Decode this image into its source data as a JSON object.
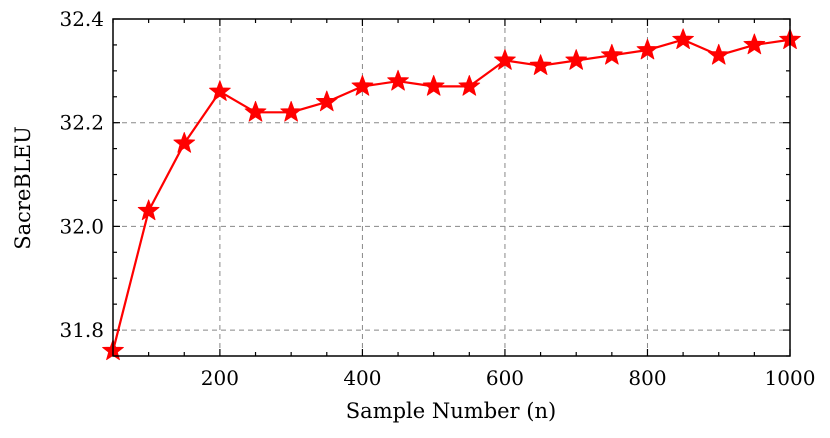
{
  "chart_data": {
    "type": "line",
    "title": "",
    "xlabel": "Sample Number (n)",
    "ylabel": "SacreBLEU",
    "xlim": [
      50,
      1000
    ],
    "ylim": [
      31.75,
      32.4
    ],
    "xticks": [
      200,
      400,
      600,
      800,
      1000
    ],
    "yticks": [
      31.8,
      32.0,
      32.2,
      32.4
    ],
    "xtick_labels": [
      "200",
      "400",
      "600",
      "800",
      "1000"
    ],
    "ytick_labels": [
      "31.8",
      "32.0",
      "32.2",
      "32.4"
    ],
    "grid": true,
    "legend": "none",
    "series": [
      {
        "color": "#ff0000",
        "marker": "star",
        "x": [
          50,
          100,
          150,
          200,
          250,
          300,
          350,
          400,
          450,
          500,
          550,
          600,
          650,
          700,
          750,
          800,
          850,
          900,
          950,
          1000
        ],
        "values": [
          31.76,
          32.03,
          32.16,
          32.26,
          32.22,
          32.22,
          32.24,
          32.27,
          32.28,
          32.27,
          32.27,
          32.32,
          32.31,
          32.32,
          32.33,
          32.34,
          32.36,
          32.33,
          32.35,
          32.36
        ]
      }
    ]
  }
}
